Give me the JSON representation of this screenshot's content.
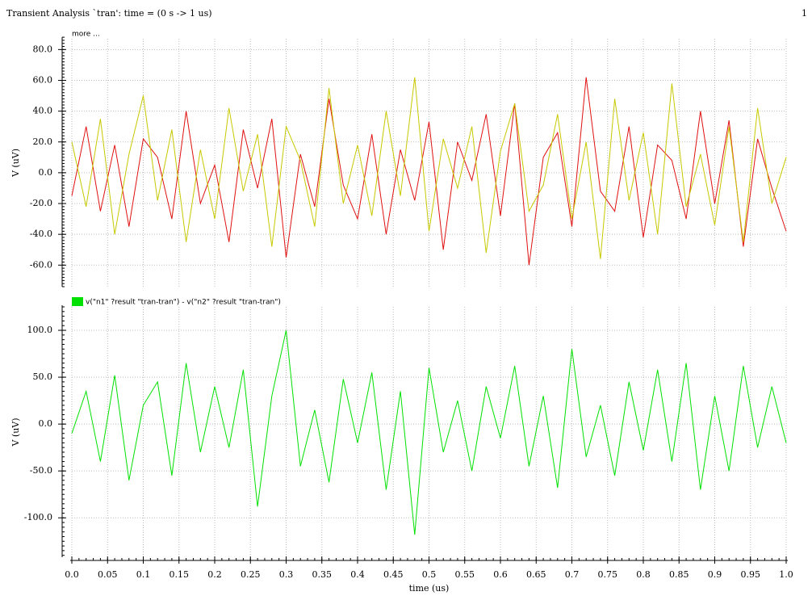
{
  "header": {
    "title": "Transient Analysis `tran': time = (0 s -> 1 us)",
    "page": "1"
  },
  "chart_data": [
    {
      "type": "line",
      "annotation": "more ...",
      "ylabel": "V (uV)",
      "x": [
        0,
        0.02,
        0.04,
        0.06,
        0.08,
        0.1,
        0.12,
        0.14,
        0.16,
        0.18,
        0.2,
        0.22,
        0.24,
        0.26,
        0.28,
        0.3,
        0.32,
        0.34,
        0.36,
        0.38,
        0.4,
        0.42,
        0.44,
        0.46,
        0.48,
        0.5,
        0.52,
        0.54,
        0.56,
        0.58,
        0.6,
        0.62,
        0.64,
        0.66,
        0.68,
        0.7,
        0.72,
        0.74,
        0.76,
        0.78,
        0.8,
        0.82,
        0.84,
        0.86,
        0.88,
        0.9,
        0.92,
        0.94,
        0.96,
        0.98,
        1.0
      ],
      "xlim": [
        0,
        1
      ],
      "ylim": [
        -74,
        87
      ],
      "yticks": [
        {
          "value": -60,
          "label": "-60.0"
        },
        {
          "value": -40,
          "label": "-40.0"
        },
        {
          "value": -20,
          "label": "-20.0"
        },
        {
          "value": 0,
          "label": "0.0"
        },
        {
          "value": 20,
          "label": "20.0"
        },
        {
          "value": 40,
          "label": "40.0"
        },
        {
          "value": 60,
          "label": "60.0"
        },
        {
          "value": 80,
          "label": "80.0"
        }
      ],
      "grid": true,
      "series": [
        {
          "color": "#e01010",
          "values": [
            -15,
            30,
            -25,
            18,
            -35,
            22,
            10,
            -30,
            40,
            -20,
            5,
            -45,
            28,
            -10,
            35,
            -55,
            12,
            -22,
            48,
            -8,
            -30,
            25,
            -40,
            15,
            -18,
            33,
            -50,
            20,
            -5,
            38,
            -28,
            45,
            -60,
            10,
            26,
            -35,
            62,
            -12,
            -25,
            30,
            -42,
            18,
            8,
            -30,
            40,
            -20,
            34,
            -48,
            22,
            -10,
            -38
          ]
        },
        {
          "color": "#c8c800",
          "values": [
            20,
            -22,
            35,
            -40,
            12,
            50,
            -18,
            28,
            -45,
            15,
            -30,
            42,
            -12,
            25,
            -48,
            30,
            8,
            -35,
            55,
            -20,
            18,
            -28,
            40,
            -15,
            62,
            -38,
            22,
            -10,
            30,
            -52,
            14,
            45,
            -25,
            -8,
            38,
            -30,
            20,
            -56,
            48,
            -18,
            26,
            -40,
            58,
            -22,
            12,
            -34,
            30,
            -45,
            42,
            -20,
            10
          ]
        }
      ]
    },
    {
      "type": "line",
      "ylabel": "V (uV)",
      "xlabel": "time (us)",
      "x": [
        0,
        0.02,
        0.04,
        0.06,
        0.08,
        0.1,
        0.12,
        0.14,
        0.16,
        0.18,
        0.2,
        0.22,
        0.24,
        0.26,
        0.28,
        0.3,
        0.32,
        0.34,
        0.36,
        0.38,
        0.4,
        0.42,
        0.44,
        0.46,
        0.48,
        0.5,
        0.52,
        0.54,
        0.56,
        0.58,
        0.6,
        0.62,
        0.64,
        0.66,
        0.68,
        0.7,
        0.72,
        0.74,
        0.76,
        0.78,
        0.8,
        0.82,
        0.84,
        0.86,
        0.88,
        0.9,
        0.92,
        0.94,
        0.96,
        0.98,
        1.0
      ],
      "xlim": [
        0,
        1
      ],
      "xticks": [
        {
          "value": 0,
          "label": "0.0"
        },
        0.05,
        0.1,
        0.15,
        0.2,
        0.25,
        0.3,
        0.35,
        0.4,
        0.45,
        0.5,
        0.55,
        0.6,
        0.65,
        0.7,
        0.75,
        0.8,
        0.85,
        0.9,
        0.95,
        {
          "value": 1,
          "label": "1.0"
        }
      ],
      "ylim": [
        -142,
        125
      ],
      "yticks": [
        {
          "value": -100,
          "label": "-100.0"
        },
        {
          "value": -50,
          "label": "-50.0"
        },
        {
          "value": 0,
          "label": "0.0"
        },
        {
          "value": 50,
          "label": "50.0"
        },
        {
          "value": 100,
          "label": "100.0"
        }
      ],
      "grid": true,
      "series": [
        {
          "name": "v(\"n1\" ?result \"tran-tran\") - v(\"n2\" ?result \"tran-tran\")",
          "color": "#00e000",
          "values": [
            -10,
            35,
            -40,
            52,
            -60,
            20,
            45,
            -55,
            65,
            -30,
            40,
            -25,
            58,
            -88,
            30,
            100,
            -45,
            15,
            -62,
            48,
            -20,
            55,
            -70,
            35,
            -118,
            60,
            -30,
            25,
            -50,
            40,
            -15,
            62,
            -45,
            30,
            -68,
            80,
            -35,
            20,
            -55,
            45,
            -28,
            58,
            -40,
            65,
            -70,
            30,
            -50,
            62,
            -25,
            40,
            -20
          ]
        }
      ]
    }
  ]
}
